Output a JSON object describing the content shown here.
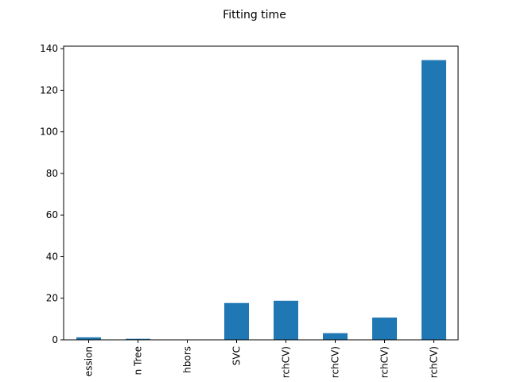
{
  "chart_data": {
    "type": "bar",
    "title": "Fitting time",
    "xlabel": "",
    "ylabel": "",
    "categories": [
      "ession",
      "n Tree",
      "hbors",
      "SVC",
      "rchCV)",
      "rchCV)",
      "rchCV)",
      "rchCV)"
    ],
    "values": [
      1.2,
      0.5,
      0.1,
      17.7,
      18.8,
      3.2,
      10.7,
      134.5
    ],
    "ylim": [
      0,
      141.2
    ],
    "yticks": [
      0,
      20,
      40,
      60,
      80,
      100,
      120,
      140
    ],
    "bar_color": "#1f77b4",
    "grid": false,
    "legend": "none"
  }
}
